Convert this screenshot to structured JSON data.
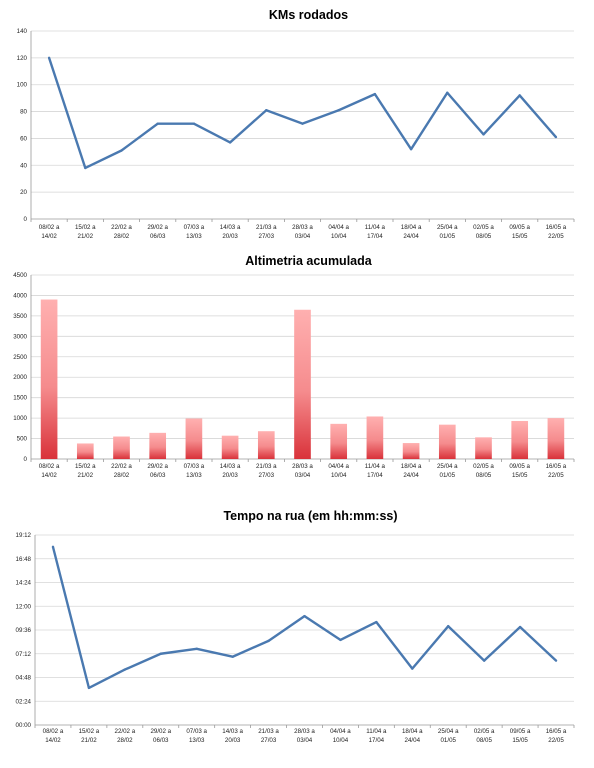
{
  "categories": [
    [
      "08/02 a",
      "14/02"
    ],
    [
      "15/02 a",
      "21/02"
    ],
    [
      "22/02 a",
      "28/02"
    ],
    [
      "29/02 a",
      "06/03"
    ],
    [
      "07/03 a",
      "13/03"
    ],
    [
      "14/03 a",
      "20/03"
    ],
    [
      "21/03 a",
      "27/03"
    ],
    [
      "28/03 a",
      "03/04"
    ],
    [
      "04/04 a",
      "10/04"
    ],
    [
      "11/04 a",
      "17/04"
    ],
    [
      "18/04 a",
      "24/04"
    ],
    [
      "25/04 a",
      "01/05"
    ],
    [
      "02/05 a",
      "08/05"
    ],
    [
      "09/05 a",
      "15/05"
    ],
    [
      "16/05 a",
      "22/05"
    ]
  ],
  "colors": {
    "line": "#4a79b0",
    "bar_light": "#ffb0b0",
    "bar_dark": "#d9323a"
  },
  "chart_data": [
    {
      "type": "line",
      "title": "KMs rodados",
      "xlabel": "",
      "ylabel": "",
      "ylim": [
        0,
        140
      ],
      "yticks": [
        "0",
        "20",
        "40",
        "60",
        "80",
        "100",
        "120",
        "140"
      ],
      "grid": true,
      "series": [
        {
          "values": [
            120,
            38,
            51,
            71,
            71,
            57,
            81,
            71,
            81,
            93,
            52,
            94,
            63,
            92,
            61
          ]
        }
      ]
    },
    {
      "type": "bar",
      "title": "Altimetria acumulada",
      "xlabel": "",
      "ylabel": "",
      "ylim": [
        0,
        4500
      ],
      "yticks": [
        "0",
        "500",
        "1000",
        "1500",
        "2000",
        "2500",
        "3000",
        "3500",
        "4000",
        "4500"
      ],
      "grid": true,
      "values": [
        3900,
        380,
        550,
        640,
        990,
        570,
        680,
        3650,
        860,
        1040,
        390,
        840,
        530,
        930,
        1000
      ]
    },
    {
      "type": "line",
      "title": "Tempo na rua (em hh:mm:ss)",
      "xlabel": "",
      "ylabel": "",
      "ylim": [
        0,
        69120
      ],
      "yticks": [
        "00:00",
        "02:24",
        "04:48",
        "07:12",
        "09:36",
        "12:00",
        "14:24",
        "16:48",
        "19:12"
      ],
      "grid": true,
      "series": [
        {
          "values": [
            64800,
            13500,
            20160,
            25920,
            27720,
            24840,
            30600,
            39600,
            30960,
            37440,
            20520,
            35940,
            23400,
            35640,
            23400
          ]
        }
      ]
    }
  ]
}
